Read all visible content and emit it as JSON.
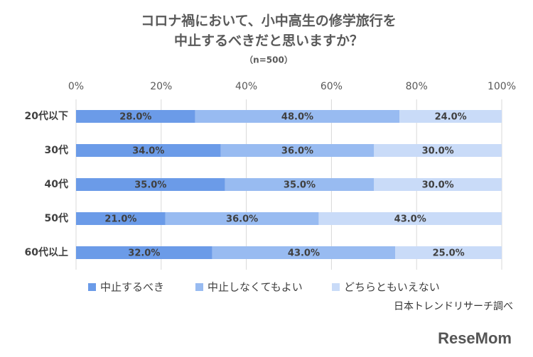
{
  "chart_data": {
    "type": "stacked-bar-horizontal",
    "title": [
      "コロナ禍において、小中高生の修学旅行を",
      "中止するべきだと思いますか？"
    ],
    "subtitle": "（n=500）",
    "source": "日本トレンドリサーチ調べ",
    "watermark": "ReseMom",
    "categories": [
      "20代以下",
      "30代",
      "40代",
      "50代",
      "60代以上"
    ],
    "series": [
      {
        "name": "中止するべき",
        "color": "#6b9be8",
        "values": [
          28,
          34,
          35,
          21,
          32
        ],
        "value_labels": [
          "28.0%",
          "34.0%",
          "35.0%",
          "21.0%",
          "32.0%"
        ]
      },
      {
        "name": "中止しなくてもよい",
        "color": "#98bbf1",
        "values": [
          48,
          36,
          35,
          36,
          43
        ],
        "value_labels": [
          "48.0%",
          "36.0%",
          "35.0%",
          "36.0%",
          "43.0%"
        ]
      },
      {
        "name": "どちらともいえない",
        "color": "#c9dbf8",
        "values": [
          24,
          30,
          30,
          43,
          25
        ],
        "value_labels": [
          "24.0%",
          "30.0%",
          "30.0%",
          "43.0%",
          "25.0%"
        ]
      }
    ],
    "xlim": [
      0,
      100
    ],
    "xticks": [
      {
        "value": 0,
        "label": "0%"
      },
      {
        "value": 20,
        "label": "20%"
      },
      {
        "value": 40,
        "label": "40%"
      },
      {
        "value": 60,
        "label": "60%"
      },
      {
        "value": 80,
        "label": "80%"
      },
      {
        "value": 100,
        "label": "100%"
      }
    ],
    "grid": true
  }
}
